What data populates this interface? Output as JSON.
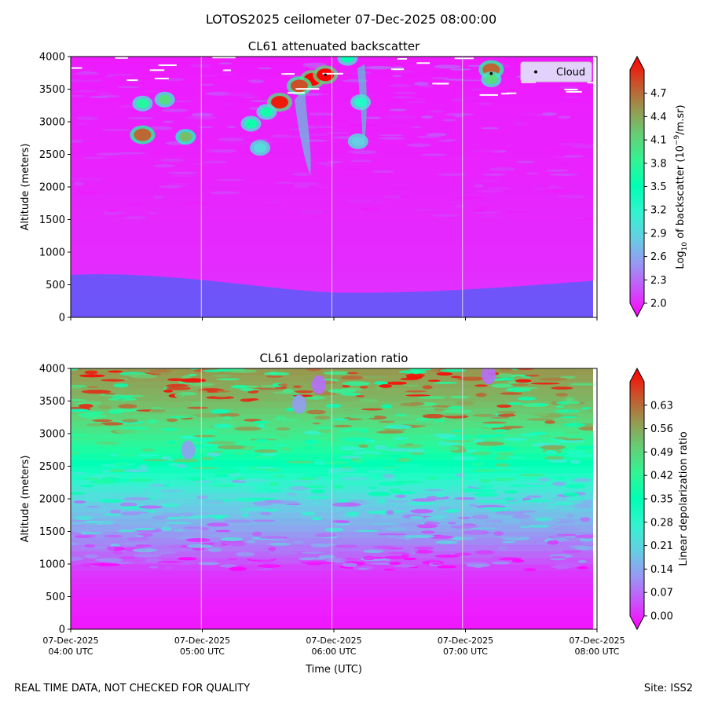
{
  "suptitle": "LOTOS2025 ceilometer 07-Dec-2025 08:00:00",
  "footer_left": "REAL TIME DATA, NOT CHECKED FOR QUALITY",
  "footer_right": "Site: ISS2",
  "chart_data": [
    {
      "type": "heatmap",
      "title": "CL61 attenuated backscatter",
      "xlabel": "",
      "ylabel": "Altitude (meters)",
      "xlim_hours_utc": [
        4,
        8
      ],
      "ylim": [
        0,
        4000
      ],
      "yticks": [
        0,
        500,
        1000,
        1500,
        2000,
        2500,
        3000,
        3500,
        4000
      ],
      "xticks_hours_utc": [
        4,
        5,
        6,
        7,
        8
      ],
      "colorbar": {
        "label_prefix": "Log",
        "label_sub": "10",
        "label_mid": " of backscatter (10",
        "label_sup": "−9",
        "label_suffix": "/m.sr)",
        "range": [
          2.0,
          5.0
        ],
        "ticks": [
          "2.0",
          "2.3",
          "2.6",
          "2.9",
          "3.2",
          "3.5",
          "3.8",
          "4.1",
          "4.4",
          "4.7"
        ],
        "extend": "both",
        "colormap": "rainbow"
      },
      "legend": {
        "entries": [
          "Cloud"
        ],
        "placement": "upper right"
      },
      "cloud_points": [
        {
          "hour_utc": 5.95,
          "altitude": 3720
        },
        {
          "hour_utc": 7.22,
          "altitude": 3740
        }
      ],
      "features": [
        {
          "hour_utc": 5.6,
          "altitude": 3300,
          "value": 4.9
        },
        {
          "hour_utc": 5.85,
          "altitude": 3650,
          "value": 5.0
        },
        {
          "hour_utc": 5.95,
          "altitude": 3720,
          "value": 5.0
        },
        {
          "hour_utc": 5.75,
          "altitude": 3550,
          "value": 4.7
        },
        {
          "hour_utc": 5.5,
          "altitude": 3150,
          "value": 3.6
        },
        {
          "hour_utc": 5.45,
          "altitude": 2600,
          "value": 3.0
        },
        {
          "hour_utc": 6.22,
          "altitude": 3300,
          "value": 3.3
        },
        {
          "hour_utc": 6.2,
          "altitude": 2700,
          "value": 2.9
        },
        {
          "hour_utc": 4.55,
          "altitude": 2800,
          "value": 4.6
        },
        {
          "hour_utc": 4.88,
          "altitude": 2770,
          "value": 4.2
        },
        {
          "hour_utc": 4.72,
          "altitude": 3340,
          "value": 4.0
        },
        {
          "hour_utc": 4.55,
          "altitude": 3280,
          "value": 3.7
        },
        {
          "hour_utc": 5.38,
          "altitude": 2970,
          "value": 3.6
        },
        {
          "hour_utc": 6.12,
          "altitude": 3980,
          "value": 3.5
        },
        {
          "hour_utc": 7.22,
          "altitude": 3800,
          "value": 4.6
        },
        {
          "hour_utc": 7.22,
          "altitude": 3650,
          "value": 4.0
        }
      ]
    },
    {
      "type": "heatmap",
      "title": "CL61 depolarization ratio",
      "xlabel": "Time (UTC)",
      "ylabel": "Altitude (meters)",
      "xlim_hours_utc": [
        4,
        8
      ],
      "ylim": [
        0,
        4000
      ],
      "yticks": [
        0,
        500,
        1000,
        1500,
        2000,
        2500,
        3000,
        3500,
        4000
      ],
      "xticks_hours_utc": [
        4,
        5,
        6,
        7,
        8
      ],
      "xtick_labels": [
        [
          "07-Dec-2025",
          "04:00 UTC"
        ],
        [
          "07-Dec-2025",
          "05:00 UTC"
        ],
        [
          "07-Dec-2025",
          "06:00 UTC"
        ],
        [
          "07-Dec-2025",
          "07:00 UTC"
        ],
        [
          "07-Dec-2025",
          "08:00 UTC"
        ]
      ],
      "colorbar": {
        "label": "Linear depolarization ratio",
        "range": [
          0.0,
          0.7
        ],
        "ticks": [
          "0.00",
          "0.07",
          "0.14",
          "0.21",
          "0.28",
          "0.35",
          "0.42",
          "0.49",
          "0.56",
          "0.63"
        ],
        "extend": "both",
        "colormap": "rainbow"
      },
      "profile": [
        {
          "altitude": 0,
          "value": 0.02
        },
        {
          "altitude": 500,
          "value": 0.03
        },
        {
          "altitude": 900,
          "value": 0.05
        },
        {
          "altitude": 1300,
          "value": 0.12
        },
        {
          "altitude": 1700,
          "value": 0.18
        },
        {
          "altitude": 2000,
          "value": 0.22
        },
        {
          "altitude": 2500,
          "value": 0.34
        },
        {
          "altitude": 3000,
          "value": 0.44
        },
        {
          "altitude": 3500,
          "value": 0.52
        },
        {
          "altitude": 4000,
          "value": 0.56
        }
      ],
      "low_depol_features": [
        {
          "hour_utc": 5.9,
          "altitude": 3750,
          "value": 0.1
        },
        {
          "hour_utc": 5.75,
          "altitude": 3450,
          "value": 0.15
        },
        {
          "hour_utc": 7.2,
          "altitude": 3900,
          "value": 0.1
        },
        {
          "hour_utc": 4.9,
          "altitude": 2750,
          "value": 0.15
        }
      ]
    }
  ]
}
